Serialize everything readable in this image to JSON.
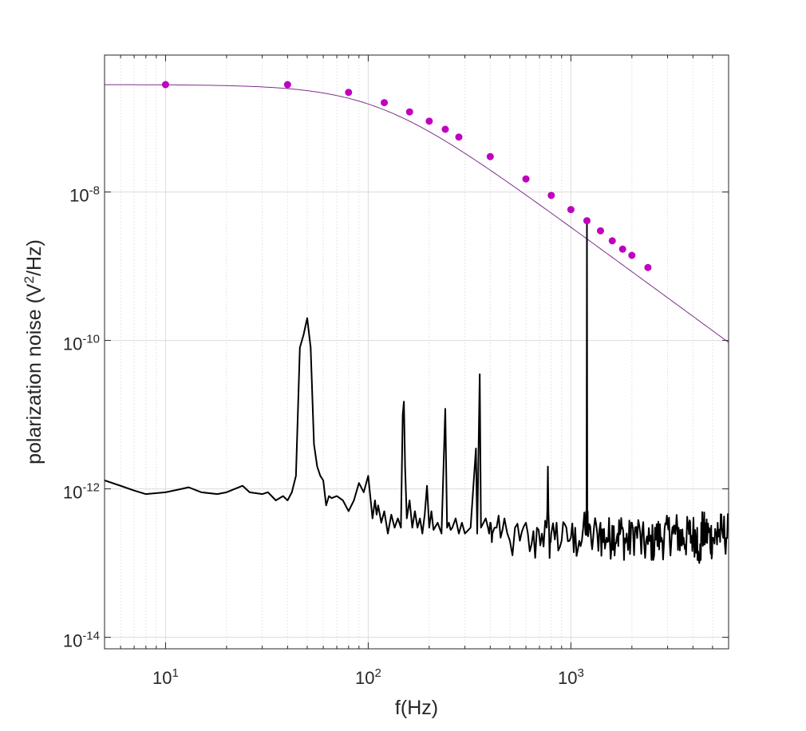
{
  "chart_data": {
    "type": "line",
    "title": "",
    "xlabel": "f(Hz)",
    "ylabel": "polarization noise (V2/Hz)",
    "ylabel_parts": {
      "before": "polarization noise (V",
      "sup": "2",
      "after": "/Hz)"
    },
    "x_scale": "log",
    "y_scale": "log",
    "xlim": [
      5,
      6000
    ],
    "ylim": [
      7e-15,
      7e-07
    ],
    "grid": true,
    "x_ticks": [
      {
        "value": 10,
        "base": "10",
        "exp": "1"
      },
      {
        "value": 100,
        "base": "10",
        "exp": "2"
      },
      {
        "value": 1000,
        "base": "10",
        "exp": "3"
      }
    ],
    "y_ticks": [
      {
        "value": 1e-14,
        "base": "10",
        "exp": "-14"
      },
      {
        "value": 1e-12,
        "base": "10",
        "exp": "-12"
      },
      {
        "value": 1e-10,
        "base": "10",
        "exp": "-10"
      },
      {
        "value": 1e-08,
        "base": "10",
        "exp": "-8"
      }
    ],
    "series": [
      {
        "color": "#7e2f8e",
        "style": "thin line",
        "model": {
          "A": 2.8e-07,
          "fc": 110,
          "order": 2
        },
        "x": [
          5,
          10,
          20,
          40,
          60,
          80,
          100,
          120,
          160,
          200,
          250,
          300,
          400,
          600,
          800,
          1000,
          1200,
          1500,
          2000,
          3000,
          4000,
          6000
        ],
        "y": [
          2.8e-07,
          2.8e-07,
          2.75e-07,
          2.7e-07,
          2.37e-07,
          2.05e-07,
          1.63e-07,
          1.43e-07,
          1.1e-07,
          8.45e-08,
          5.65e-08,
          4e-08,
          2.2e-08,
          9.6e-09,
          5.5e-09,
          3.6e-09,
          2.5e-09,
          1.6e-09,
          8.9e-10,
          3.9e-10,
          2.2e-10,
          1e-10
        ]
      },
      {
        "color": "#bf00bf",
        "style": "markers",
        "x": [
          10,
          40,
          80,
          120,
          160,
          200,
          240,
          280,
          400,
          600,
          800,
          1000,
          1200,
          1400,
          1600,
          1800,
          2000,
          2400
        ],
        "y": [
          2.8e-07,
          2.8e-07,
          2.2e-07,
          1.6e-07,
          1.2e-07,
          9e-08,
          7e-08,
          5.5e-08,
          3e-08,
          1.5e-08,
          9e-09,
          5.8e-09,
          4.1e-09,
          3e-09,
          2.2e-09,
          1.7e-09,
          1.4e-09,
          9.6e-10
        ]
      },
      {
        "color": "#000000",
        "style": "line",
        "x": [
          5,
          6,
          7,
          8,
          10,
          12,
          13,
          15,
          18,
          20,
          22,
          24,
          26,
          30,
          32,
          35,
          38,
          40,
          42,
          44,
          46,
          48,
          50,
          52,
          54,
          56,
          58,
          60,
          62,
          64,
          66,
          70,
          75,
          80,
          85,
          90,
          95,
          100,
          105,
          108,
          110,
          112,
          116,
          120,
          125,
          130,
          135,
          140,
          145,
          148,
          150,
          152,
          155,
          160,
          165,
          170,
          175,
          180,
          185,
          190,
          195,
          200,
          205,
          210,
          220,
          230,
          240,
          245,
          250,
          255,
          260,
          270,
          280,
          290,
          300,
          320,
          340,
          345,
          350,
          355,
          360,
          380,
          390,
          395,
          400,
          405,
          410,
          430,
          450,
          470,
          500,
          530,
          560,
          600,
          640,
          680,
          720,
          760,
          770,
          780,
          790,
          800,
          850,
          900,
          950,
          1000,
          1050,
          1100,
          1150,
          1180,
          1190,
          1200,
          1210,
          1220,
          1260,
          1300,
          1350,
          1400,
          1500,
          1600,
          1700,
          1800,
          1900,
          2000,
          2200,
          2400,
          2600,
          2800,
          3000,
          3200,
          3400,
          3600,
          3800,
          4000,
          4200,
          4300,
          4400,
          4600,
          4800,
          5000,
          5300,
          5600,
          6000
        ],
        "y": [
          1.3e-12,
          1.1e-12,
          9.5e-13,
          8.5e-13,
          9e-13,
          1e-12,
          1.05e-12,
          9e-13,
          8.5e-13,
          9e-13,
          1e-12,
          1.1e-12,
          9e-13,
          8.5e-13,
          9e-13,
          7e-13,
          8e-13,
          7e-13,
          9e-13,
          1.5e-12,
          8e-11,
          1.2e-10,
          2e-10,
          8e-11,
          4e-12,
          2e-12,
          1.5e-12,
          1.3e-12,
          6e-13,
          8e-13,
          7.5e-13,
          8e-13,
          7e-13,
          5e-13,
          7e-13,
          1.2e-12,
          9e-13,
          1.5e-12,
          4e-13,
          7e-13,
          4.5e-13,
          6e-13,
          3.5e-13,
          5e-13,
          2.5e-13,
          4.5e-13,
          3e-13,
          4e-13,
          3e-13,
          1e-11,
          1.5e-11,
          2e-12,
          4e-13,
          7e-13,
          3e-13,
          5e-13,
          3e-13,
          4e-13,
          2.5e-13,
          4.5e-13,
          1.1e-12,
          3e-13,
          5e-13,
          2.8e-13,
          3.5e-13,
          2.5e-13,
          1.2e-11,
          3e-13,
          3.5e-13,
          2.8e-13,
          3e-13,
          4e-13,
          2.5e-13,
          3.5e-13,
          2.5e-13,
          3e-13,
          3.5e-12,
          2.5e-13,
          3e-12,
          3.5e-11,
          3e-13,
          4e-13,
          3e-13,
          2.5e-13,
          3.5e-13,
          2.8e-13,
          2.5e-13,
          3e-13,
          2.2e-13,
          4e-13,
          2e-13,
          3e-13,
          2e-13,
          3.5e-13,
          1.8e-13,
          3e-13,
          2.5e-13,
          3e-13,
          2e-12,
          3e-13,
          2e-13,
          2.5e-13,
          3.5e-13,
          2e-13,
          3e-13,
          2.2e-13,
          3e-13,
          2e-13,
          3e-13,
          2.5e-13,
          5e-13,
          4e-09,
          5e-13,
          2.5e-13,
          2e-13,
          3e-13,
          2.5e-13,
          3.5e-13,
          2.2e-13,
          3.2e-13,
          2.5e-13,
          3e-13,
          2e-13,
          3.5e-13,
          2.5e-13,
          1.8e-13,
          3e-13,
          2.2e-13,
          3.5e-13,
          2.5e-13,
          3e-13,
          2.2e-13,
          3.5e-13,
          2.4e-13,
          3e-13,
          1e-13,
          3.5e-13,
          2.5e-13,
          3e-13,
          2.2e-13,
          3.5e-13,
          2.5e-13,
          3e-13
        ]
      }
    ]
  }
}
